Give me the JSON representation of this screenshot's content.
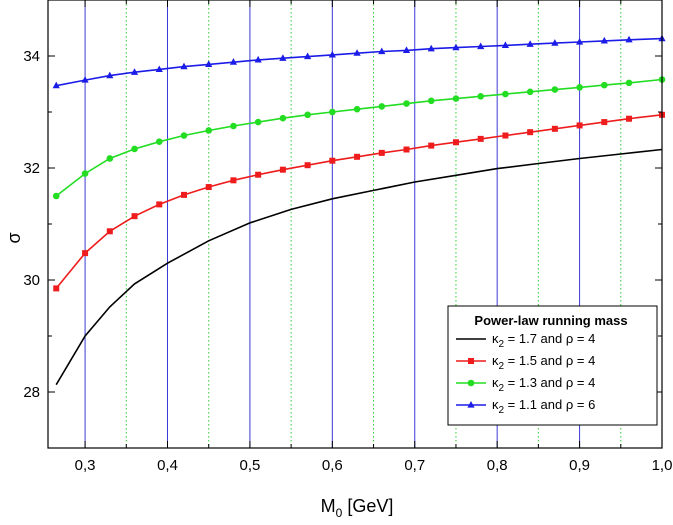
{
  "chart_data": {
    "type": "line",
    "xlabel": "M",
    "xlabel_sub": "0",
    "xlabel_unit": " [GeV]",
    "ylabel": "σ",
    "xlim": [
      0.255,
      1.0
    ],
    "ylim": [
      27.0,
      35.0
    ],
    "xticks": [
      0.3,
      0.4,
      0.5,
      0.6,
      0.7,
      0.8,
      0.9,
      1.0
    ],
    "xtick_labels": [
      "0,3",
      "0,4",
      "0,5",
      "0,6",
      "0,7",
      "0,8",
      "0,9",
      "1,0"
    ],
    "yticks": [
      28,
      30,
      32,
      34
    ],
    "ytick_labels": [
      "28",
      "30",
      "32",
      "34"
    ],
    "major_grid_x": [
      0.3,
      0.4,
      0.5,
      0.6,
      0.7,
      0.8,
      0.9
    ],
    "minor_grid_x": [
      0.35,
      0.45,
      0.55,
      0.65,
      0.75,
      0.85,
      0.95
    ],
    "grid_major_color": "#3a3ad8",
    "grid_minor_color": "#33cc33",
    "legend": {
      "title": "Power-law running mass",
      "position": "bottom-right"
    },
    "series": [
      {
        "name": "κ2 = 1.7 and ρ = 4",
        "kappa_sub": "2",
        "rest": " = 1.7 and ρ = 4",
        "color": "#000000",
        "marker": "none",
        "x": [
          0.265,
          0.3,
          0.33,
          0.36,
          0.4,
          0.45,
          0.5,
          0.55,
          0.6,
          0.65,
          0.7,
          0.75,
          0.8,
          0.85,
          0.9,
          0.95,
          1.0
        ],
        "y": [
          28.13,
          29.0,
          29.52,
          29.93,
          30.3,
          30.7,
          31.02,
          31.26,
          31.45,
          31.6,
          31.75,
          31.87,
          31.99,
          32.08,
          32.17,
          32.25,
          32.33
        ]
      },
      {
        "name": "κ2 = 1.5 and ρ = 4",
        "kappa_sub": "2",
        "rest": " = 1.5 and ρ = 4",
        "color": "#ee1c1c",
        "marker": "square",
        "x": [
          0.265,
          0.3,
          0.33,
          0.36,
          0.39,
          0.42,
          0.45,
          0.48,
          0.51,
          0.54,
          0.57,
          0.6,
          0.63,
          0.66,
          0.69,
          0.72,
          0.75,
          0.78,
          0.81,
          0.84,
          0.87,
          0.9,
          0.93,
          0.96,
          1.0
        ],
        "y": [
          29.85,
          30.48,
          30.87,
          31.14,
          31.35,
          31.52,
          31.66,
          31.78,
          31.88,
          31.97,
          32.05,
          32.13,
          32.2,
          32.27,
          32.33,
          32.4,
          32.46,
          32.52,
          32.58,
          32.64,
          32.7,
          32.76,
          32.82,
          32.88,
          32.95
        ]
      },
      {
        "name": "κ2 = 1.3 and ρ = 4",
        "kappa_sub": "2",
        "rest": " = 1.3 and ρ = 4",
        "color": "#22dd22",
        "marker": "circle",
        "x": [
          0.265,
          0.3,
          0.33,
          0.36,
          0.39,
          0.42,
          0.45,
          0.48,
          0.51,
          0.54,
          0.57,
          0.6,
          0.63,
          0.66,
          0.69,
          0.72,
          0.75,
          0.78,
          0.81,
          0.84,
          0.87,
          0.9,
          0.93,
          0.96,
          1.0
        ],
        "y": [
          31.5,
          31.9,
          32.17,
          32.34,
          32.47,
          32.58,
          32.67,
          32.75,
          32.82,
          32.89,
          32.95,
          33.0,
          33.05,
          33.1,
          33.15,
          33.2,
          33.24,
          33.28,
          33.32,
          33.36,
          33.4,
          33.44,
          33.48,
          33.52,
          33.58
        ]
      },
      {
        "name": "κ2 = 1.1 and ρ = 6",
        "kappa_sub": "2",
        "rest": " = 1.1 and ρ = 6",
        "color": "#1c1ce8",
        "marker": "triangle",
        "x": [
          0.265,
          0.3,
          0.33,
          0.36,
          0.39,
          0.42,
          0.45,
          0.48,
          0.51,
          0.54,
          0.57,
          0.6,
          0.63,
          0.66,
          0.69,
          0.72,
          0.75,
          0.78,
          0.81,
          0.84,
          0.87,
          0.9,
          0.93,
          0.96,
          1.0
        ],
        "y": [
          33.47,
          33.57,
          33.65,
          33.71,
          33.76,
          33.81,
          33.85,
          33.89,
          33.93,
          33.96,
          33.99,
          34.02,
          34.05,
          34.08,
          34.1,
          34.13,
          34.15,
          34.17,
          34.19,
          34.21,
          34.23,
          34.25,
          34.27,
          34.29,
          34.31
        ]
      }
    ]
  }
}
